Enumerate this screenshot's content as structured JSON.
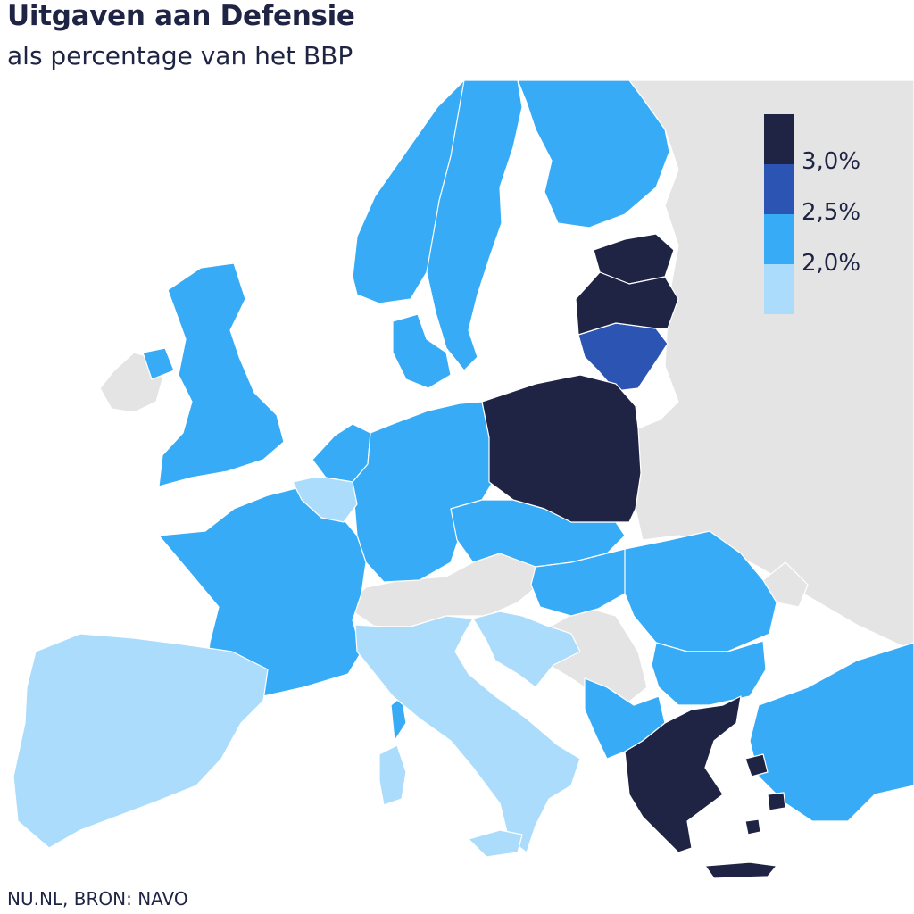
{
  "title": "Uitgaven aan Defensie",
  "subtitle": "als percentage van het BBP",
  "source": "NU.NL, BRON: NAVO",
  "colors": {
    "above_3": "#1f2444",
    "from_2_5_to_3": "#2c55b3",
    "from_2_to_2_5": "#37abf5",
    "below_2": "#abdcfb",
    "non_member": "#e4e4e4",
    "sea": "#ffffff"
  },
  "legend": {
    "labels": [
      "3,0%",
      "2,5%",
      "2,0%"
    ],
    "classes": [
      "above_3",
      "from_2_5_to_3",
      "from_2_to_2_5",
      "below_2"
    ]
  }
}
